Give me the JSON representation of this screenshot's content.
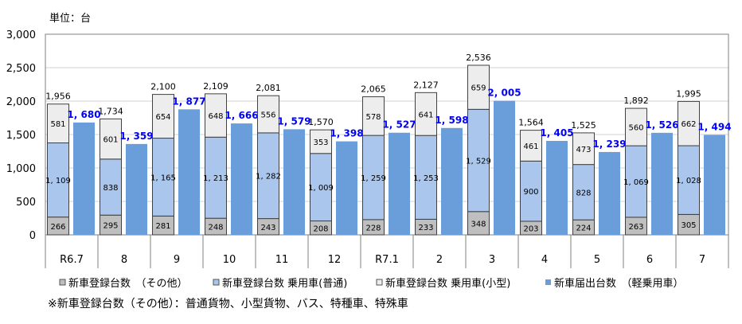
{
  "chart_data": {
    "type": "bar",
    "unit_label": "単位：台",
    "categories": [
      "R6.7",
      "8",
      "9",
      "10",
      "11",
      "12",
      "R7.1",
      "2",
      "3",
      "4",
      "5",
      "6",
      "7"
    ],
    "ylim": [
      0,
      3000
    ],
    "yticks": [
      "0",
      "500",
      "1,000",
      "1,500",
      "2,000",
      "2,500",
      "3,000"
    ],
    "ytick_values": [
      0,
      500,
      1000,
      1500,
      2000,
      2500,
      3000
    ],
    "grid": true,
    "legend_placement": "bottom",
    "stacked_series": [
      {
        "name": "新車登録台数　（その他）",
        "color": "#bfbfbf",
        "values": [
          266,
          295,
          281,
          248,
          243,
          208,
          228,
          233,
          348,
          203,
          224,
          263,
          305
        ]
      },
      {
        "name": "新車登録台数 乗用車(普通)",
        "color": "#aac6ec",
        "values": [
          1109,
          838,
          1165,
          1213,
          1282,
          1009,
          1259,
          1253,
          1529,
          900,
          828,
          1069,
          1028
        ]
      },
      {
        "name": "新車登録台数 乗用車(小型)",
        "color": "#ededed",
        "values": [
          581,
          601,
          654,
          648,
          556,
          353,
          578,
          641,
          659,
          461,
          473,
          560,
          662
        ]
      }
    ],
    "stacked_totals": [
      "1,956",
      "1,734",
      "2,100",
      "2,109",
      "2,081",
      "1,570",
      "2,065",
      "2,127",
      "2,536",
      "1,564",
      "1,525",
      "1,892",
      "1,995"
    ],
    "separate_series": {
      "name": "新車届出台数　（軽乗用車）",
      "color": "#6a9edb",
      "label_color": "#0000ff",
      "values": [
        1680,
        1359,
        1877,
        1666,
        1579,
        1398,
        1527,
        1598,
        2005,
        1405,
        1239,
        1526,
        1494
      ]
    },
    "footnote": "※新車登録台数（その他）：普通貨物、小型貨物、バス、特種車、特殊車"
  }
}
